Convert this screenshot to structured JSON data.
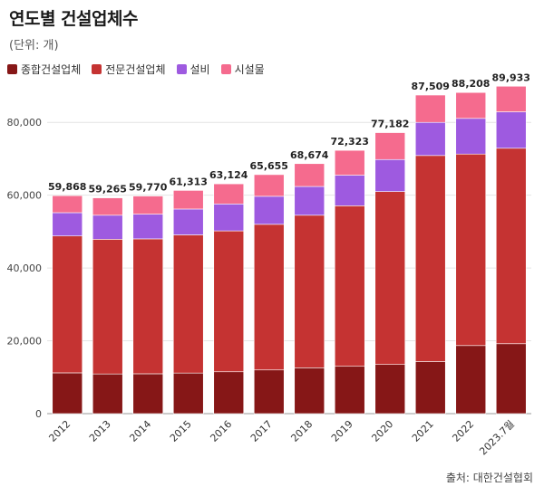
{
  "header": {
    "title": "연도별 건설업체수",
    "unit": "(단위: 개)"
  },
  "source": "출처: 대한건설협회",
  "chart_data": {
    "type": "bar",
    "stacked": true,
    "title": "연도별 건설업체수",
    "ylabel": "",
    "xlabel": "",
    "ylim": [
      0,
      90000
    ],
    "yticks": [
      0,
      20000,
      40000,
      60000,
      80000
    ],
    "ytick_labels": [
      "0",
      "20,000",
      "40,000",
      "60,000",
      "80,000"
    ],
    "categories": [
      "2012",
      "2013",
      "2014",
      "2015",
      "2016",
      "2017",
      "2018",
      "2019",
      "2020",
      "2021",
      "2022",
      "2023.7월"
    ],
    "series": [
      {
        "name": "종합건설업체",
        "color": "#861717",
        "values": [
          11200,
          10900,
          10950,
          11150,
          11500,
          12000,
          12600,
          13000,
          13500,
          14300,
          18700,
          19200
        ]
      },
      {
        "name": "전문건설업체",
        "color": "#c53332",
        "values": [
          37600,
          37000,
          37050,
          37950,
          38700,
          40000,
          41900,
          44100,
          47500,
          56600,
          52600,
          53700
        ]
      },
      {
        "name": "설비",
        "color": "#9e5ae0",
        "values": [
          6400,
          6600,
          6800,
          7100,
          7400,
          7700,
          7900,
          8400,
          8800,
          9100,
          9800,
          10000
        ]
      },
      {
        "name": "시설물",
        "color": "#f56b8e",
        "values": [
          4668,
          4765,
          4970,
          5113,
          5524,
          5955,
          6274,
          6823,
          7382,
          7509,
          7108,
          7033
        ]
      }
    ],
    "totals": [
      "59,868",
      "59,265",
      "59,770",
      "61,313",
      "63,124",
      "65,655",
      "68,674",
      "72,323",
      "77,182",
      "87,509",
      "88,208",
      "89,933"
    ],
    "legend_position": "top-left",
    "grid": true
  }
}
